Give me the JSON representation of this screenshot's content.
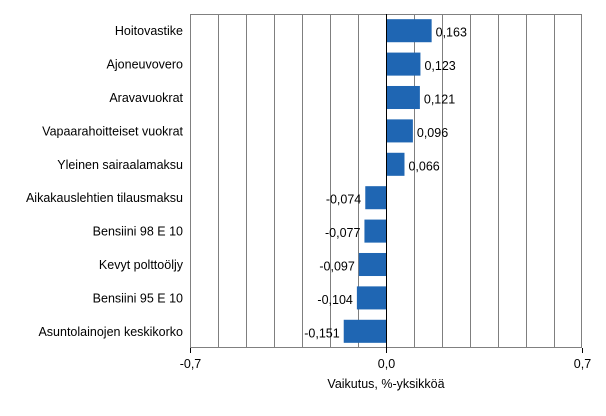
{
  "chart_data": {
    "type": "bar",
    "orientation": "horizontal",
    "categories": [
      "Hoitovastike",
      "Ajoneuvovero",
      "Aravavuokrat",
      "Vapaarahoitteiset vuokrat",
      "Yleinen sairaalamaksu",
      "Aikakauslehtien tilausmaksu",
      "Bensiini 98 E 10",
      "Kevyt polttoöljy",
      "Bensiini 95 E 10",
      "Asuntolainojen keskikorko"
    ],
    "values": [
      0.163,
      0.123,
      0.121,
      0.096,
      0.066,
      -0.074,
      -0.077,
      -0.097,
      -0.104,
      -0.151
    ],
    "value_labels": [
      "0,163",
      "0,123",
      "0,121",
      "0,096",
      "0,066",
      "-0,074",
      "-0,077",
      "-0,097",
      "-0,104",
      "-0,151"
    ],
    "xlim": [
      -0.7,
      0.7
    ],
    "xticks": [
      -0.7,
      0.0,
      0.7
    ],
    "xtick_labels": [
      "-0,7",
      "0,0",
      "0,7"
    ],
    "grid_step": 0.1,
    "xlabel": "Vaikutus, %-yksikköä",
    "ylabel": "",
    "title": "",
    "bar_color": "#1f66b3",
    "grid_color": "#7f7f7f"
  }
}
